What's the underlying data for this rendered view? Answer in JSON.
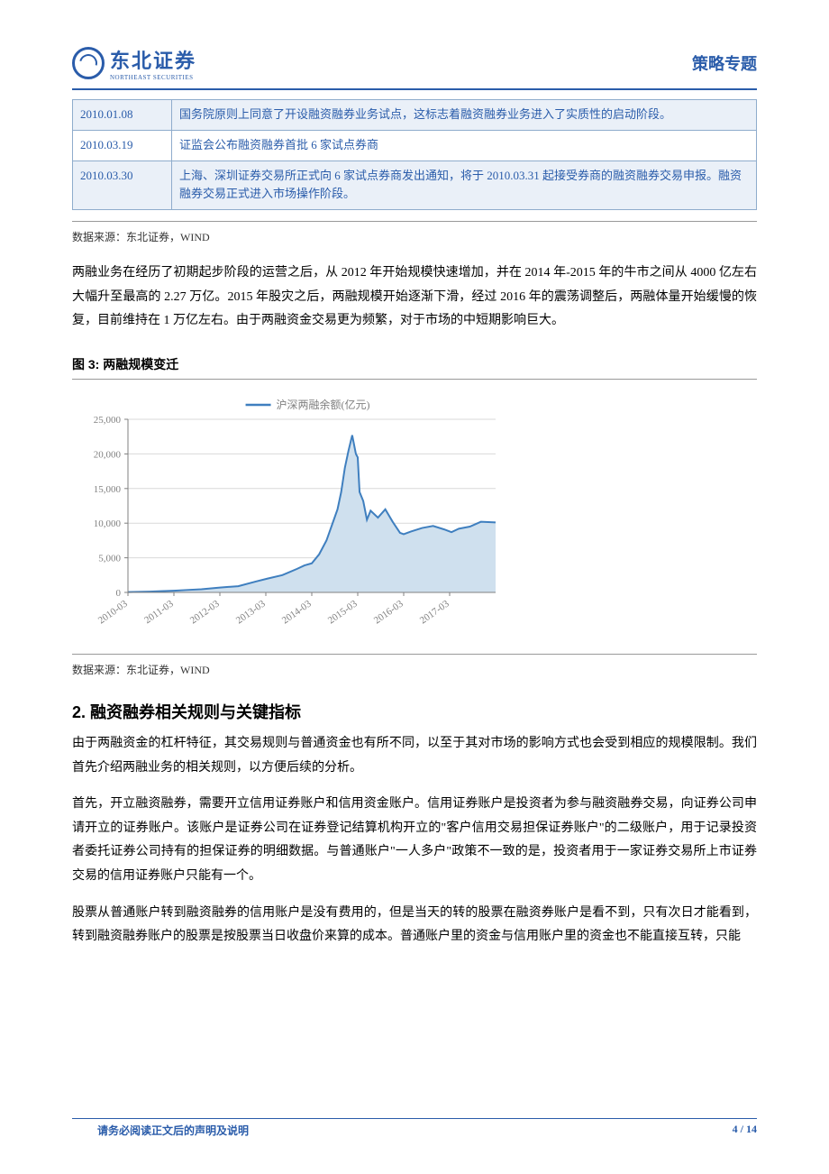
{
  "header": {
    "logo_cn": "东北证券",
    "logo_en": "NORTHEAST SECURITIES",
    "right_label": "策略专题"
  },
  "table": {
    "rows": [
      {
        "date": "2010.01.08",
        "desc": "国务院原则上同意了开设融资融券业务试点，这标志着融资融券业务进入了实质性的启动阶段。",
        "alt": true
      },
      {
        "date": "2010.03.19",
        "desc": "证监会公布融资融券首批 6 家试点券商",
        "alt": false
      },
      {
        "date": "2010.03.30",
        "desc": "上海、深圳证券交易所正式向 6 家试点券商发出通知，将于 2010.03.31 起接受券商的融资融券交易申报。融资融券交易正式进入市场操作阶段。",
        "alt": true
      }
    ]
  },
  "source_label": "数据来源：东北证券，WIND",
  "para1": "两融业务在经历了初期起步阶段的运营之后，从 2012 年开始规模快速增加，并在 2014 年-2015 年的牛市之间从 4000 亿左右大幅升至最高的 2.27 万亿。2015 年股灾之后，两融规模开始逐渐下滑，经过 2016 年的震荡调整后，两融体量开始缓慢的恢复，目前维持在 1 万亿左右。由于两融资金交易更为频繁，对于市场的中短期影响巨大。",
  "figure3_title": "图 3:  两融规模变迁",
  "chart": {
    "type": "area-line",
    "legend": "沪深两融余额(亿元)",
    "ylim": [
      0,
      25000
    ],
    "ytick_step": 5000,
    "yticks": [
      "0",
      "5,000",
      "10,000",
      "15,000",
      "20,000",
      "25,000"
    ],
    "xlabels": [
      "2010-03",
      "2011-03",
      "2012-03",
      "2013-03",
      "2014-03",
      "2015-03",
      "2016-03",
      "2017-03"
    ],
    "x_positions": [
      0,
      12.5,
      25,
      37.5,
      50,
      62.5,
      75,
      87.5
    ],
    "line_color": "#3f7fbf",
    "fill_color": "#cfe0ee",
    "grid_color": "#d9d9d9",
    "axis_color": "#808080",
    "tick_font_size": 11,
    "legend_font_size": 12,
    "data": [
      {
        "x": 0,
        "y": 50
      },
      {
        "x": 3,
        "y": 80
      },
      {
        "x": 6,
        "y": 120
      },
      {
        "x": 9,
        "y": 180
      },
      {
        "x": 12.5,
        "y": 250
      },
      {
        "x": 16,
        "y": 350
      },
      {
        "x": 20,
        "y": 450
      },
      {
        "x": 25,
        "y": 700
      },
      {
        "x": 30,
        "y": 900
      },
      {
        "x": 35,
        "y": 1600
      },
      {
        "x": 38,
        "y": 2000
      },
      {
        "x": 42,
        "y": 2500
      },
      {
        "x": 46,
        "y": 3400
      },
      {
        "x": 48,
        "y": 3900
      },
      {
        "x": 50,
        "y": 4200
      },
      {
        "x": 52,
        "y": 5500
      },
      {
        "x": 54,
        "y": 7500
      },
      {
        "x": 56,
        "y": 10500
      },
      {
        "x": 57,
        "y": 12000
      },
      {
        "x": 58,
        "y": 14500
      },
      {
        "x": 59,
        "y": 18000
      },
      {
        "x": 60,
        "y": 20500
      },
      {
        "x": 61,
        "y": 22700
      },
      {
        "x": 62,
        "y": 20000
      },
      {
        "x": 62.5,
        "y": 19500
      },
      {
        "x": 63,
        "y": 14500
      },
      {
        "x": 64,
        "y": 13200
      },
      {
        "x": 65,
        "y": 10500
      },
      {
        "x": 66,
        "y": 11800
      },
      {
        "x": 68,
        "y": 10800
      },
      {
        "x": 70,
        "y": 12000
      },
      {
        "x": 72,
        "y": 10200
      },
      {
        "x": 74,
        "y": 8600
      },
      {
        "x": 75,
        "y": 8400
      },
      {
        "x": 77,
        "y": 8800
      },
      {
        "x": 80,
        "y": 9300
      },
      {
        "x": 83,
        "y": 9600
      },
      {
        "x": 86,
        "y": 9100
      },
      {
        "x": 88,
        "y": 8700
      },
      {
        "x": 90,
        "y": 9200
      },
      {
        "x": 93,
        "y": 9500
      },
      {
        "x": 96,
        "y": 10200
      },
      {
        "x": 100,
        "y": 10100
      }
    ]
  },
  "section2_title": "2.  融资融券相关规则与关键指标",
  "para2": "由于两融资金的杠杆特征，其交易规则与普通资金也有所不同，以至于其对市场的影响方式也会受到相应的规模限制。我们首先介绍两融业务的相关规则，以方便后续的分析。",
  "para3": "首先，开立融资融券，需要开立信用证券账户和信用资金账户。信用证券账户是投资者为参与融资融券交易，向证券公司申请开立的证券账户。该账户是证券公司在证券登记结算机构开立的\"客户信用交易担保证券账户\"的二级账户，用于记录投资者委托证券公司持有的担保证券的明细数据。与普通账户\"一人多户\"政策不一致的是，投资者用于一家证券交易所上市证券交易的信用证券账户只能有一个。",
  "para4": "股票从普通账户转到融资融券的信用账户是没有费用的，但是当天的转的股票在融资券账户是看不到，只有次日才能看到，转到融资融券账户的股票是按股票当日收盘价来算的成本。普通账户里的资金与信用账户里的资金也不能直接互转，只能",
  "footer": {
    "left": "请务必阅读正文后的声明及说明",
    "right": "4 / 14"
  }
}
